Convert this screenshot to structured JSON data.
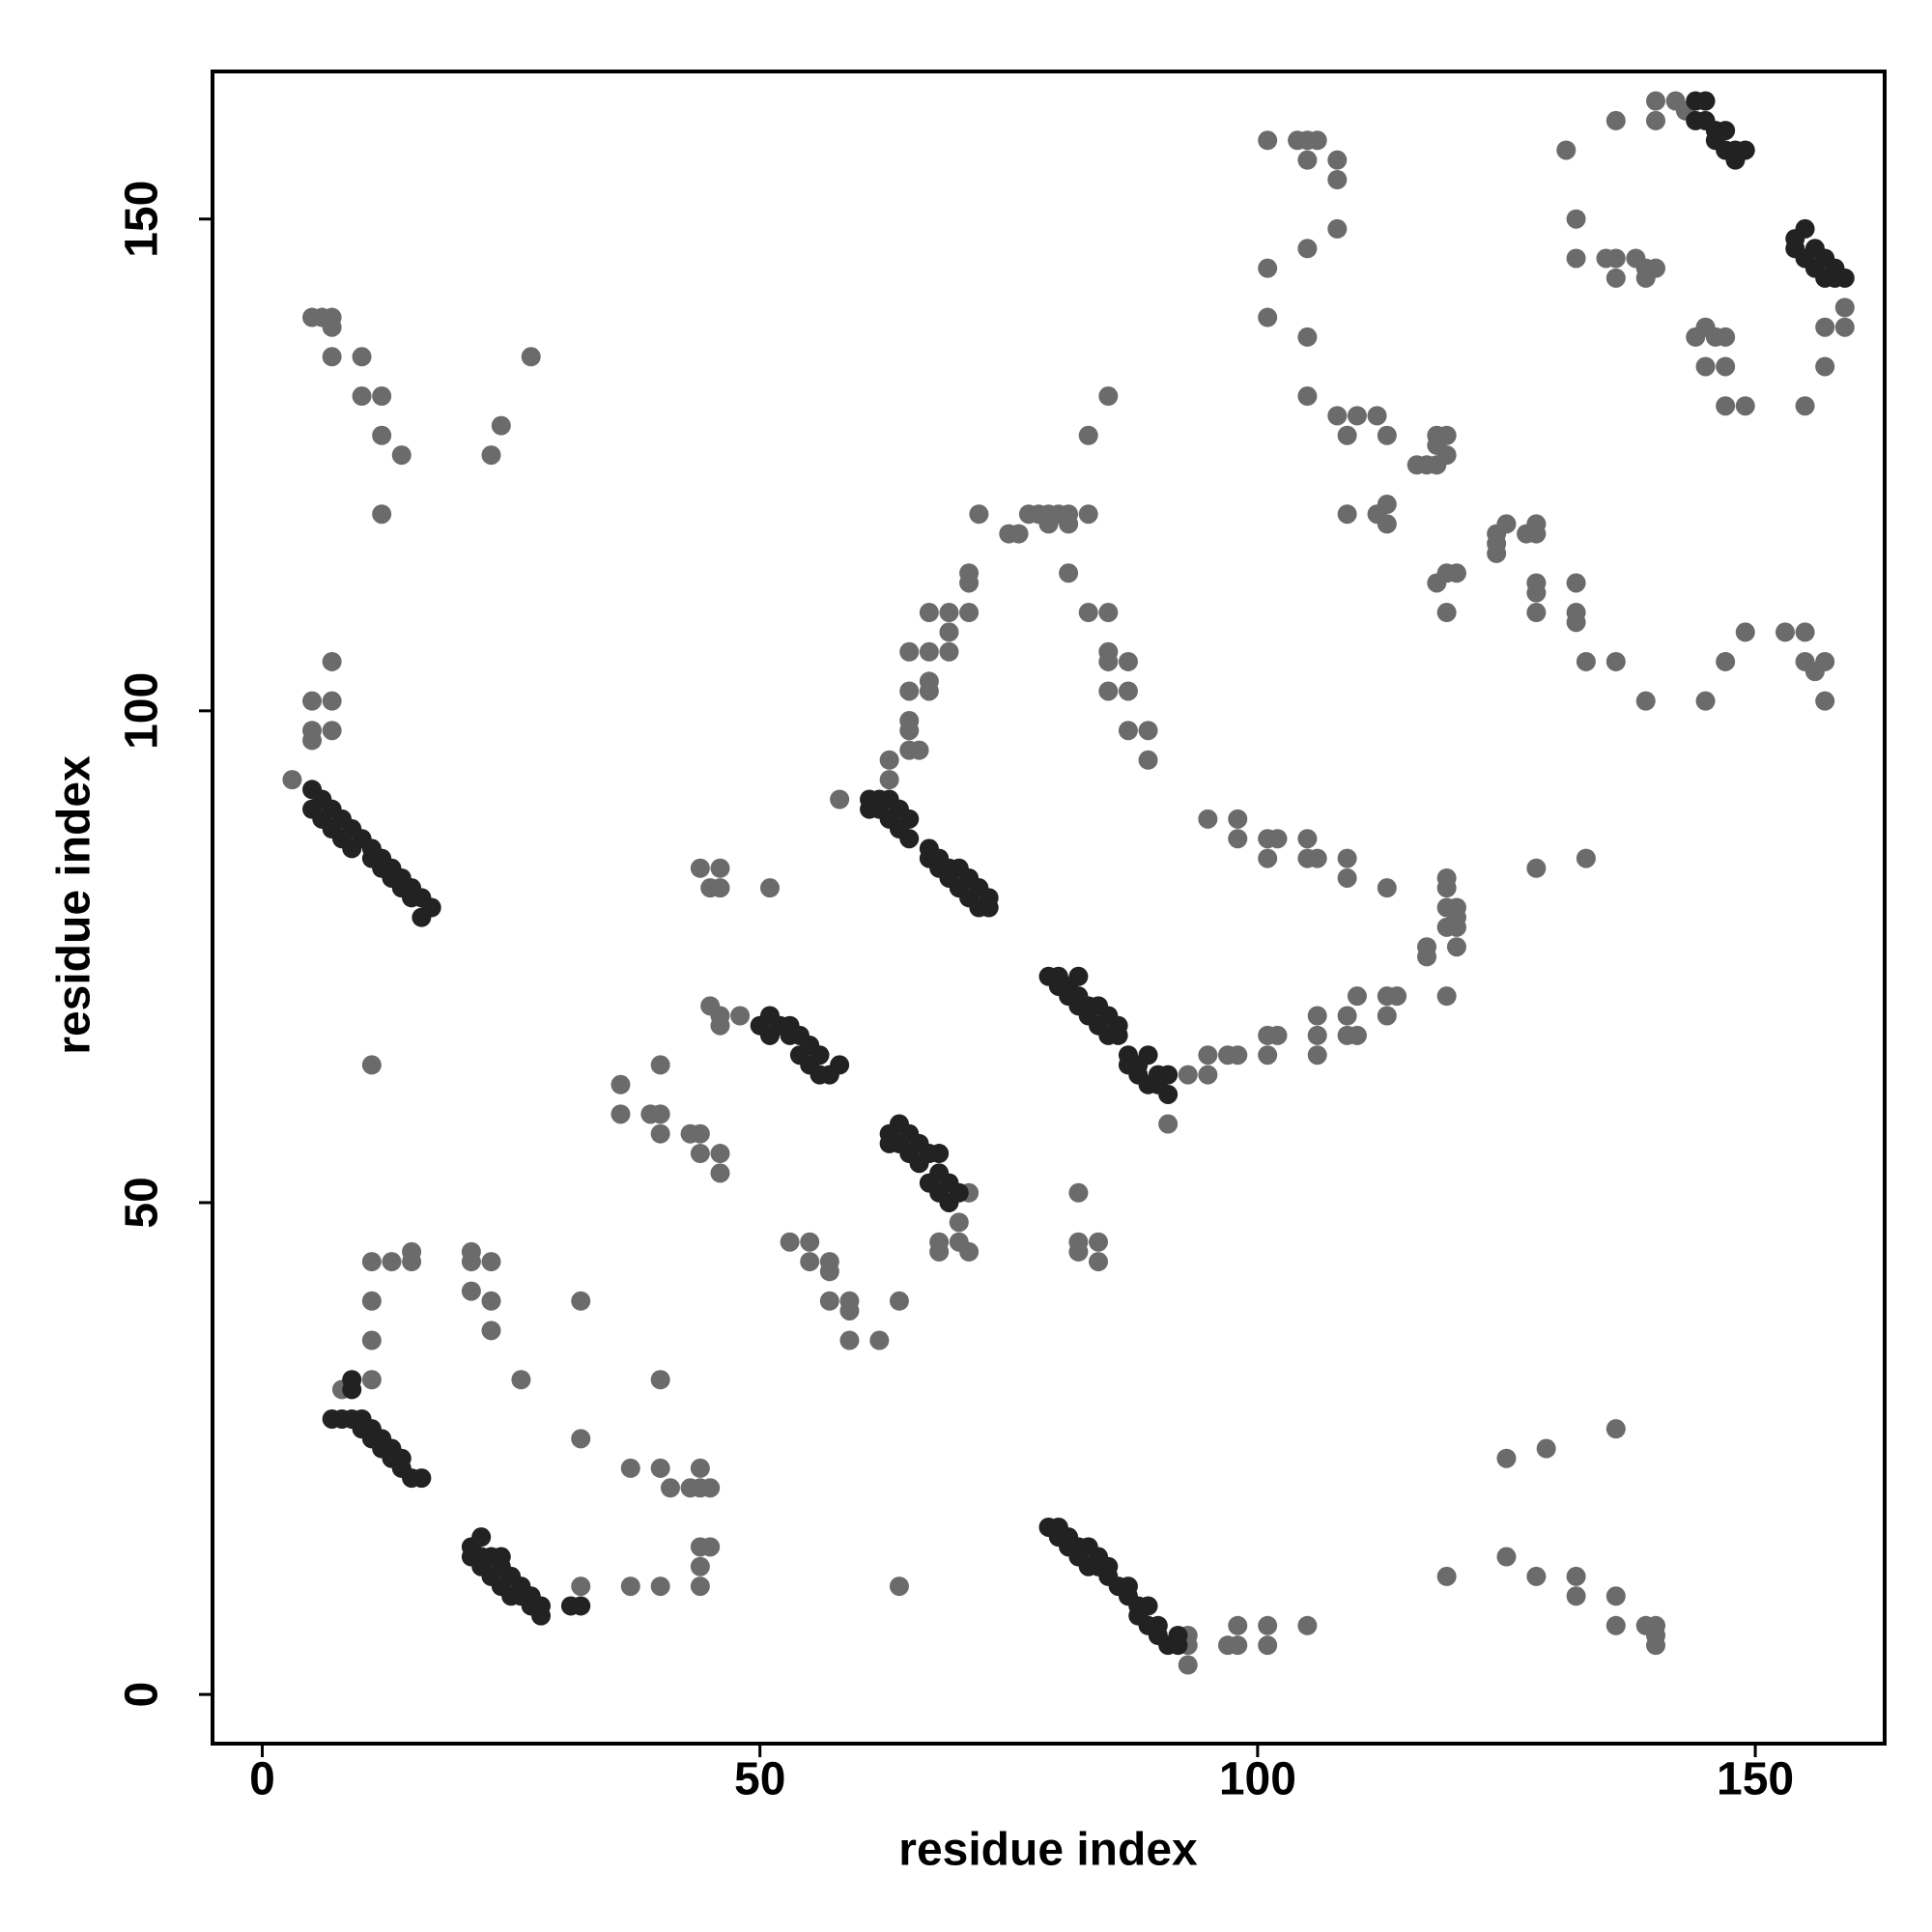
{
  "chart_data": {
    "type": "scatter",
    "xlabel": "residue index",
    "ylabel": "residue index",
    "xlim": [
      -5,
      163
    ],
    "ylim": [
      -5,
      165
    ],
    "xticks": [
      0,
      50,
      100,
      150
    ],
    "yticks": [
      0,
      50,
      100,
      150
    ],
    "grid": false,
    "series": [
      {
        "color": "#6b6b6b",
        "x": [
          3,
          5,
          7,
          5,
          7,
          7,
          5,
          5,
          6,
          7,
          7,
          7,
          10,
          10,
          12,
          12,
          14,
          12,
          23,
          24,
          27,
          11,
          8,
          11,
          11,
          11,
          11,
          13,
          15,
          15,
          32,
          21,
          21,
          21,
          23,
          23,
          23,
          26,
          32,
          32,
          37,
          37,
          40,
          40,
          41,
          43,
          44,
          45,
          44,
          44,
          45,
          44,
          44,
          40,
          36,
          36,
          39,
          40,
          40,
          40,
          43,
          44,
          44,
          46,
          46,
          44,
          45,
          46,
          46,
          51,
          45,
          46,
          46,
          48,
          53,
          55,
          55,
          57,
          57,
          57,
          59,
          59,
          59,
          62,
          64,
          64,
          58,
          68,
          68,
          70,
          70,
          71,
          71,
          63,
          63,
          65,
          65,
          65,
          65,
          66,
          67,
          67,
          67,
          65,
          67,
          69,
          69,
          69,
          71,
          71,
          71,
          72,
          75,
          76,
          77,
          78,
          79,
          79,
          80,
          81,
          81,
          83,
          81,
          83,
          85,
          85,
          85,
          85,
          87,
          87,
          87,
          89,
          89,
          83,
          85,
          91,
          93,
          95,
          95,
          97,
          98,
          101,
          101,
          102,
          106,
          106,
          106,
          109,
          109,
          110,
          110,
          113,
          113,
          114,
          95,
          98,
          98,
          101,
          101,
          102,
          105,
          105,
          106,
          109,
          109,
          113,
          117,
          117,
          119,
          119,
          119,
          120,
          119,
          120,
          120,
          119,
          120,
          93,
          93,
          93,
          97,
          98,
          98,
          101,
          101,
          105,
          82,
          82,
          82,
          84,
          84,
          101,
          101,
          101,
          104,
          105,
          105,
          106,
          108,
          108,
          108,
          105,
          105,
          105,
          108,
          109,
          110,
          109,
          112,
          112,
          113,
          113,
          113,
          116,
          117,
          118,
          118,
          118,
          119,
          119,
          119,
          118,
          120,
          119,
          124,
          124,
          125,
          127,
          128,
          128,
          128,
          128,
          128,
          124,
          132,
          132,
          132,
          133,
          136,
          139,
          145,
          147,
          149,
          153,
          155,
          155,
          156,
          157,
          157,
          128,
          133,
          131,
          132,
          132,
          135,
          136,
          136,
          136,
          138,
          139,
          139,
          140,
          140,
          140,
          142,
          143,
          144,
          145,
          145,
          146,
          147,
          147,
          147,
          149,
          159,
          159,
          157,
          157,
          155,
          119,
          125,
          125,
          129,
          128,
          132,
          132,
          136,
          136,
          136,
          139,
          140,
          140,
          140
        ],
        "y": [
          93,
          101,
          101,
          98,
          98,
          105,
          97,
          140,
          140,
          140,
          139,
          136,
          136,
          132,
          132,
          128,
          126,
          120,
          126,
          129,
          136,
          64,
          31,
          32,
          36,
          40,
          44,
          44,
          45,
          44,
          11,
          41,
          44,
          45,
          37,
          40,
          44,
          32,
          26,
          40,
          11,
          23,
          11,
          23,
          21,
          21,
          21,
          21,
          23,
          15,
          15,
          13,
          11,
          32,
          59,
          62,
          59,
          59,
          57,
          64,
          57,
          57,
          55,
          55,
          53,
          84,
          82,
          84,
          82,
          82,
          70,
          68,
          69,
          69,
          46,
          44,
          46,
          43,
          44,
          40,
          39,
          40,
          36,
          36,
          40,
          11,
          91,
          46,
          45,
          48,
          46,
          45,
          51,
          93,
          95,
          96,
          98,
          99,
          102,
          96,
          102,
          103,
          106,
          106,
          110,
          108,
          110,
          106,
          110,
          113,
          114,
          120,
          118,
          118,
          120,
          120,
          119,
          120,
          120,
          120,
          119,
          120,
          114,
          110,
          110,
          106,
          105,
          102,
          102,
          98,
          105,
          98,
          95,
          128,
          132,
          58,
          63,
          63,
          65,
          65,
          65,
          65,
          67,
          67,
          65,
          67,
          69,
          67,
          69,
          67,
          71,
          69,
          71,
          71,
          89,
          87,
          89,
          87,
          85,
          87,
          85,
          87,
          85,
          83,
          85,
          82,
          75,
          76,
          71,
          78,
          80,
          78,
          82,
          76,
          80,
          83,
          79,
          3,
          5,
          6,
          5,
          5,
          7,
          5,
          7,
          7,
          51,
          45,
          46,
          44,
          46,
          140,
          145,
          158,
          158,
          158,
          156,
          158,
          156,
          154,
          149,
          147,
          138,
          132,
          130,
          128,
          130,
          120,
          130,
          120,
          121,
          128,
          119,
          125,
          125,
          125,
          127,
          128,
          128,
          126,
          114,
          113,
          114,
          110,
          117,
          118,
          119,
          118,
          119,
          118,
          113,
          112,
          110,
          116,
          113,
          110,
          109,
          105,
          105,
          101,
          101,
          105,
          108,
          108,
          108,
          105,
          104,
          101,
          105,
          84,
          85,
          157,
          150,
          146,
          146,
          144,
          146,
          160,
          146,
          144,
          145,
          145,
          160,
          162,
          162,
          161,
          138,
          139,
          135,
          138,
          138,
          135,
          131,
          131,
          141,
          139,
          139,
          135,
          131,
          12,
          24,
          14,
          25,
          12,
          12,
          10,
          10,
          7,
          27,
          7,
          7,
          6,
          5
        ]
      },
      {
        "color": "#222222",
        "x": [
          5,
          6,
          7,
          8,
          9,
          10,
          11,
          12,
          13,
          14,
          15,
          16,
          17,
          5,
          6,
          7,
          8,
          9,
          11,
          12,
          13,
          14,
          15,
          16,
          7,
          8,
          9,
          10,
          10,
          11,
          11,
          12,
          12,
          13,
          13,
          14,
          14,
          15,
          16,
          9,
          9,
          21,
          21,
          22,
          22,
          22,
          23,
          23,
          24,
          24,
          24,
          25,
          25,
          26,
          26,
          27,
          27,
          28,
          28,
          31,
          32,
          50,
          51,
          51,
          52,
          53,
          53,
          54,
          54,
          55,
          55,
          56,
          56,
          57,
          58,
          63,
          63,
          64,
          64,
          65,
          65,
          66,
          66,
          67,
          67,
          68,
          68,
          68,
          69,
          69,
          70,
          61,
          61,
          62,
          62,
          63,
          63,
          64,
          64,
          65,
          65,
          67,
          67,
          68,
          68,
          69,
          69,
          70,
          70,
          71,
          71,
          72,
          72,
          73,
          73,
          79,
          80,
          80,
          81,
          81,
          82,
          82,
          82,
          83,
          83,
          84,
          84,
          85,
          85,
          86,
          86,
          87,
          87,
          88,
          88,
          89,
          89,
          90,
          90,
          91,
          91,
          79,
          80,
          80,
          81,
          81,
          82,
          82,
          83,
          83,
          84,
          84,
          85,
          85,
          86,
          87,
          87,
          88,
          88,
          89,
          89,
          90,
          90,
          91,
          92,
          92,
          144,
          144,
          145,
          145,
          146,
          146,
          147,
          147,
          148,
          148,
          149,
          154,
          154,
          155,
          155,
          156,
          156,
          157,
          157,
          158,
          158,
          159
        ],
        "y": [
          92,
          91,
          90,
          89,
          88,
          87,
          86,
          85,
          84,
          83,
          82,
          81,
          80,
          90,
          89,
          88,
          87,
          86,
          85,
          84,
          83,
          82,
          81,
          79,
          28,
          28,
          28,
          27,
          28,
          26,
          27,
          25,
          26,
          24,
          25,
          23,
          24,
          22,
          22,
          31,
          32,
          14,
          15,
          13,
          14,
          16,
          12,
          14,
          11,
          13,
          14,
          10,
          12,
          10,
          11,
          9,
          10,
          8,
          9,
          9,
          9,
          68,
          67,
          69,
          68,
          67,
          68,
          65,
          67,
          66,
          64,
          65,
          63,
          63,
          64,
          57,
          56,
          58,
          56,
          55,
          57,
          54,
          56,
          52,
          55,
          51,
          53,
          55,
          52,
          50,
          51,
          91,
          90,
          90,
          91,
          89,
          91,
          88,
          90,
          87,
          89,
          85,
          86,
          84,
          85,
          83,
          84,
          82,
          84,
          81,
          83,
          80,
          82,
          80,
          81,
          73,
          72,
          73,
          71,
          72,
          70,
          71,
          73,
          69,
          70,
          68,
          70,
          67,
          69,
          67,
          68,
          65,
          64,
          63,
          64,
          62,
          65,
          62,
          63,
          61,
          63,
          17,
          17,
          16,
          15,
          16,
          14,
          15,
          13,
          15,
          13,
          14,
          12,
          13,
          11,
          10,
          11,
          9,
          8,
          7,
          9,
          6,
          7,
          5,
          5,
          6,
          160,
          162,
          160,
          162,
          159,
          158,
          157,
          159,
          157,
          156,
          157,
          148,
          147,
          149,
          146,
          145,
          147,
          144,
          146,
          145,
          144,
          144
        ]
      }
    ]
  }
}
